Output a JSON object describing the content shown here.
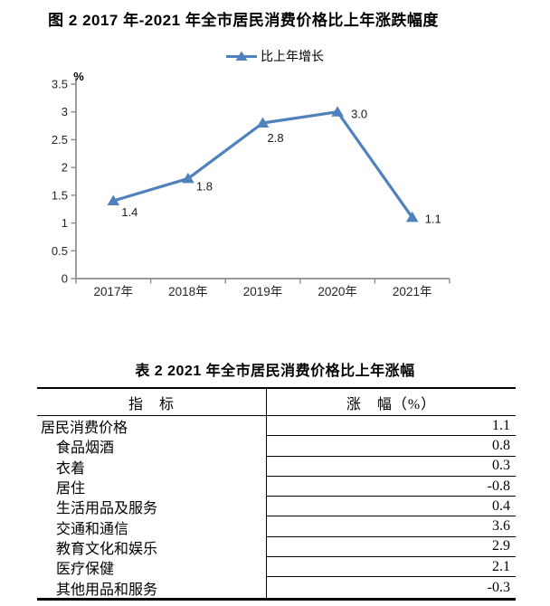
{
  "figure": {
    "title": "图 2  2017 年-2021 年全市居民消费价格比上年涨跌幅度",
    "legend": {
      "label": "比上年增长",
      "marker": "triangle-on-line"
    }
  },
  "chart_data": {
    "type": "line",
    "title": "图 2  2017 年-2021 年全市居民消费价格比上年涨跌幅度",
    "categories": [
      "2017年",
      "2018年",
      "2019年",
      "2020年",
      "2021年"
    ],
    "series": [
      {
        "name": "比上年增长",
        "values": [
          1.4,
          1.8,
          2.8,
          3.0,
          1.1
        ]
      }
    ],
    "data_labels": [
      "1.4",
      "1.8",
      "2.8",
      "3.0",
      "1.1"
    ],
    "xlabel": "",
    "ylabel": "%",
    "ylim": [
      0,
      3.5
    ],
    "yticks": [
      0,
      0.5,
      1,
      1.5,
      2,
      2.5,
      3,
      3.5
    ],
    "ytick_labels": [
      "0",
      "0.5",
      "1",
      "1.5",
      "2",
      "2.5",
      "3",
      "3.5"
    ],
    "grid": false,
    "legend_position": "top-center",
    "line_color": "#4F81BD",
    "axis_color": "#8C8C8C",
    "tick_label_color": "#262626",
    "data_label_color": "#1a1a1a"
  },
  "table": {
    "title": "表 2  2021 年全市居民消费价格比上年涨幅",
    "headers": [
      "指　标",
      "涨　幅（%）"
    ],
    "rows": [
      {
        "indicator": "居民消费价格",
        "value": "1.1",
        "indent": false
      },
      {
        "indicator": "食品烟酒",
        "value": "0.8",
        "indent": true
      },
      {
        "indicator": "衣着",
        "value": "0.3",
        "indent": true
      },
      {
        "indicator": "居住",
        "value": "-0.8",
        "indent": true
      },
      {
        "indicator": "生活用品及服务",
        "value": "0.4",
        "indent": true
      },
      {
        "indicator": "交通和通信",
        "value": "3.6",
        "indent": true
      },
      {
        "indicator": "教育文化和娱乐",
        "value": "2.9",
        "indent": true
      },
      {
        "indicator": "医疗保健",
        "value": "2.1",
        "indent": true
      },
      {
        "indicator": "其他用品和服务",
        "value": "-0.3",
        "indent": true
      }
    ]
  }
}
